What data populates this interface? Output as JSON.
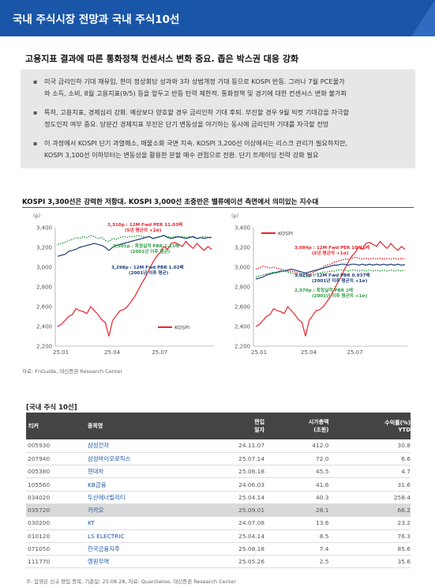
{
  "banner": {
    "title": "국내 주식시장 전망과 국내 주식10선"
  },
  "subtitle": "고용지표 결과에 따른 통화정책 컨센서스 변화 중요. 좁은 박스권 대응 강화",
  "bullets": [
    {
      "lines": [
        "미국 금리인하 기대 재유입, 한미 정상회담 성과와 3차 상법개정 기대 등으로 KOSPI 반등. 그러나 7월 PCE물가",
        "와 소득, 소비, 8월 고용지표(9/5) 등을 앞두고 반등 탄력 제한적. 통화정책 및 경기에 대한 컨센서스 변화 불가피"
      ]
    },
    {
      "lines": [
        "특히, 고용지표, 경제심리 강화. 예상보다 양호할 경우 금리인하 기대 후퇴. 부진할 경우 9월 빅컷 기대감을 자극할",
        "정도인지 여부 중요. 당분간 경제지표 부진은 단기 변동성을 야기하는 동시에 금리인하 기대를 자극할 전망"
      ]
    },
    {
      "lines": [
        "이 과정에서 KOSPI 단기 과열해소, 매물소화 국면 지속. KOSPI 3,200선 이상에서는 리스크 관리가 필요하지만,",
        "KOSPI 3,100선 이하부터는 변동성을 활용한 분할 매수 관점으로 전환. 단기 트레이딩 전략 강화 필요"
      ]
    }
  ],
  "chart_header": "KOSPI 3,300선은 강력한 저항대. KOSPI 3,000선 초중반은 밸류에이션 측면에서 의미있는 지수대",
  "chart_source": "자료: FnGuide, 대신증권 Research Center",
  "colors": {
    "kospi": "#e8232a",
    "per": "#e8232a",
    "pbr_blue": "#1d3f7a",
    "pbr_green": "#2f9e44",
    "banner": "#1a56a8"
  },
  "chart_data": [
    {
      "type": "line",
      "unit": "(p)",
      "ylim": [
        2200,
        3400
      ],
      "yticks": [
        "3,400",
        "3,200",
        "3,000",
        "2,800",
        "2,600",
        "2,400",
        "2,200"
      ],
      "xticks": [
        "25.01",
        "25.04",
        "25.07"
      ],
      "legend": "KOSPI",
      "annotations": [
        {
          "text1": "3,310p : 12M Fwd PER 11.03배",
          "text2": "(5년 평균의 +2σ)",
          "color": "#e8232a"
        },
        {
          "text1": "3,301p : 확정실적 PBR 1.11배",
          "text2": "(2001년 이후 평균)",
          "color": "#2f9e44"
        },
        {
          "text1": "3,298p : 12M Fwd PBR 1.02배",
          "text2": "(2001년 이후 평균)",
          "color": "#1d3f7a"
        }
      ],
      "series": [
        {
          "name": "KOSPI",
          "color": "#e8232a",
          "style": "solid",
          "values": [
            2400,
            2420,
            2460,
            2500,
            2520,
            2580,
            2560,
            2550,
            2530,
            2600,
            2560,
            2520,
            2470,
            2440,
            2300,
            2460,
            2510,
            2560,
            2570,
            2600,
            2650,
            2700,
            2770,
            2840,
            2900,
            2980,
            3050,
            3110,
            3150,
            3210,
            3180,
            3240,
            3250,
            3230,
            3210,
            3260,
            3220,
            3190,
            3240,
            3200,
            3170,
            3210,
            3180
          ]
        },
        {
          "name": "",
          "color": "#2f9e44",
          "style": "dotted",
          "values": [
            3230,
            3240,
            3250,
            3270,
            3280,
            3300,
            3290,
            3310,
            3300,
            3320,
            3310,
            3290,
            3300,
            3270,
            3260,
            3290,
            3280,
            3300,
            3310,
            3300,
            3310,
            3310,
            3320,
            3310,
            3300,
            3310,
            3290,
            3300,
            3310,
            3320,
            3310,
            3300,
            3310,
            3300,
            3310,
            3300,
            3310,
            3300,
            3290,
            3300,
            3310,
            3300,
            3300
          ]
        },
        {
          "name": "",
          "color": "#1d3f7a",
          "style": "solid",
          "values": [
            3110,
            3120,
            3130,
            3160,
            3170,
            3180,
            3200,
            3210,
            3220,
            3230,
            3240,
            3230,
            3220,
            3200,
            3170,
            3200,
            3220,
            3230,
            3240,
            3250,
            3260,
            3270,
            3280,
            3290,
            3300,
            3310,
            3290,
            3300,
            3310,
            3320,
            3300,
            3290,
            3300,
            3310,
            3300,
            3290,
            3300,
            3310,
            3290,
            3300,
            3290,
            3300,
            3300
          ]
        }
      ]
    },
    {
      "type": "line",
      "unit": "(p)",
      "ylim": [
        2200,
        3400
      ],
      "yticks": [
        "3,400",
        "3,200",
        "3,000",
        "2,800",
        "2,600",
        "2,400",
        "2,200"
      ],
      "xticks": [
        "25.01",
        "25.04",
        "25.07"
      ],
      "legend": "KOSPI",
      "annotations": [
        {
          "text1": "3,084p : 12M Fwd PER 10.21배",
          "text2": "(5년 평균의 +1σ)",
          "color": "#e8232a"
        },
        {
          "text1": "3,025p : 12M Fwd PBR 0.937배",
          "text2": "(2001년 이후 평균의 +1σ)",
          "color": "#1d3f7a"
        },
        {
          "text1": "2,970p : 확정실적 PBR 1배",
          "text2": "(2001년 이후 평균의 +1σ)",
          "color": "#2f9e44"
        }
      ],
      "series": [
        {
          "name": "KOSPI",
          "color": "#e8232a",
          "style": "solid",
          "values": [
            2400,
            2420,
            2460,
            2500,
            2520,
            2580,
            2560,
            2550,
            2530,
            2600,
            2560,
            2520,
            2470,
            2440,
            2300,
            2460,
            2510,
            2560,
            2570,
            2600,
            2650,
            2700,
            2770,
            2840,
            2900,
            2980,
            3050,
            3110,
            3150,
            3210,
            3180,
            3240,
            3250,
            3230,
            3210,
            3260,
            3220,
            3190,
            3240,
            3200,
            3170,
            3210,
            3180
          ]
        },
        {
          "name": "",
          "color": "#e8232a",
          "style": "dotted",
          "values": [
            2980,
            2990,
            3010,
            3000,
            2990,
            3000,
            2990,
            2980,
            2970,
            2960,
            2960,
            2950,
            2940,
            2930,
            2920,
            2930,
            2940,
            2960,
            2980,
            3000,
            3020,
            3030,
            3050,
            3060,
            3070,
            3080,
            3080,
            3090,
            3100,
            3090,
            3080,
            3090,
            3080,
            3090,
            3080,
            3090,
            3080,
            3090,
            3080,
            3090,
            3080,
            3090,
            3080
          ]
        },
        {
          "name": "",
          "color": "#1d3f7a",
          "style": "solid",
          "values": [
            2880,
            2890,
            2900,
            2920,
            2930,
            2940,
            2950,
            2960,
            2960,
            2970,
            2980,
            2970,
            2960,
            2950,
            2940,
            2950,
            2960,
            2970,
            2980,
            2990,
            3000,
            3010,
            3020,
            3020,
            3030,
            3030,
            3020,
            3030,
            3030,
            3020,
            3030,
            3020,
            3030,
            3020,
            3030,
            3020,
            3030,
            3020,
            3030,
            3020,
            3030,
            3020,
            3025
          ]
        },
        {
          "name": "",
          "color": "#2f9e44",
          "style": "dotted",
          "values": [
            2900,
            2910,
            2920,
            2930,
            2940,
            2950,
            2940,
            2950,
            2960,
            2950,
            2940,
            2930,
            2920,
            2910,
            2900,
            2910,
            2920,
            2930,
            2940,
            2950,
            2950,
            2960,
            2960,
            2970,
            2970,
            2970,
            2960,
            2970,
            2970,
            2960,
            2970,
            2960,
            2970,
            2960,
            2970,
            2960,
            2970,
            2960,
            2970,
            2960,
            2970,
            2960,
            2970
          ]
        }
      ]
    }
  ],
  "table": {
    "title": "[국내 주식 10선]",
    "headers": {
      "code": "티커",
      "name": "종목명",
      "date1": "편입",
      "date2": "일자",
      "mcap1": "시가총액",
      "mcap2": "(조원)",
      "ret1": "수익률(%)",
      "ret2": "YTD"
    },
    "rows": [
      {
        "code": "005930",
        "name": "삼성전자",
        "date": "24.11.07",
        "mcap": "412.0",
        "ret": "30.8"
      },
      {
        "code": "207940",
        "name": "삼성바이오로직스",
        "date": "25.07.14",
        "mcap": "72.0",
        "ret": "6.6"
      },
      {
        "code": "005380",
        "name": "현대차",
        "date": "25.08.18",
        "mcap": "45.5",
        "ret": "4.7"
      },
      {
        "code": "105560",
        "name": "KB금융",
        "date": "24.06.03",
        "mcap": "41.6",
        "ret": "31.6"
      },
      {
        "code": "034020",
        "name": "두산에너빌리티",
        "date": "25.04.14",
        "mcap": "40.3",
        "ret": "258.4"
      },
      {
        "code": "035720",
        "name": "카카오",
        "date": "25.09.01",
        "mcap": "28.1",
        "ret": "66.2"
      },
      {
        "code": "030200",
        "name": "KT",
        "date": "24.07.08",
        "mcap": "13.6",
        "ret": "23.2"
      },
      {
        "code": "010120",
        "name": "LS ELECTRIC",
        "date": "25.04.14",
        "mcap": "8.5",
        "ret": "76.3"
      },
      {
        "code": "071050",
        "name": "한국금융지주",
        "date": "25.08.18",
        "mcap": "7.4",
        "ret": "85.6"
      },
      {
        "code": "111770",
        "name": "영원무역",
        "date": "25.05.26",
        "mcap": "2.5",
        "ret": "35.6"
      }
    ],
    "source": "주: 음영은 신규 편입 종목, 기준일: 25.08.28, 자료: Quantiwise, 대신증권 Research Center"
  }
}
